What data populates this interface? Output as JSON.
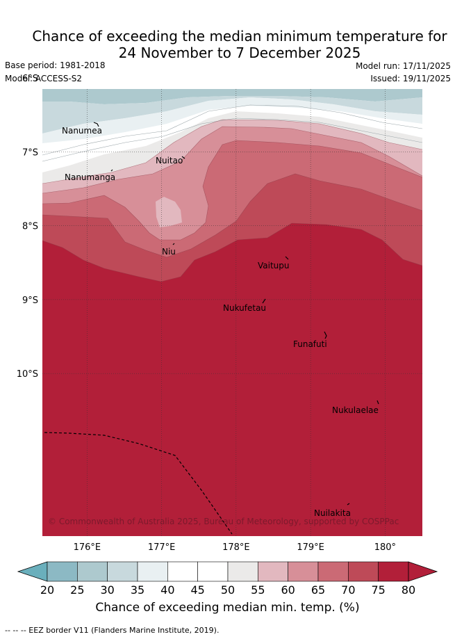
{
  "title": {
    "line1": "Chance of exceeding the median minimum temperature for",
    "line2": "24 November to 7 December 2025"
  },
  "meta": {
    "base_period": "Base period: 1981-2018",
    "model": "Model: ACCESS-S2",
    "model_run": "Model run: 17/11/2025",
    "issued": "Issued: 19/11/2025"
  },
  "map": {
    "lon_range": [
      175.4,
      180.5
    ],
    "lat_range": [
      -12.2,
      -6.15
    ],
    "x_ticks": [
      "176°E",
      "177°E",
      "178°E",
      "179°E",
      "180°"
    ],
    "y_ticks": [
      "6°S",
      "7°S",
      "8°S",
      "9°S",
      "10°S"
    ],
    "places": [
      {
        "name": "Nanumea"
      },
      {
        "name": "Nuitao"
      },
      {
        "name": "Nanumanga"
      },
      {
        "name": "Niu"
      },
      {
        "name": "Vaitupu"
      },
      {
        "name": "Nukufetau"
      },
      {
        "name": "Funafuti"
      },
      {
        "name": "Nukulaelae"
      },
      {
        "name": "Nuilakita"
      }
    ],
    "copyright": "© Commonwealth of Australia 2025, Bureau of Meteorology, supported by COSPPac"
  },
  "colorbar": {
    "ticks": [
      "20",
      "25",
      "30",
      "35",
      "40",
      "45",
      "50",
      "55",
      "60",
      "65",
      "70",
      "75",
      "80"
    ],
    "colors": [
      "#6aafbc",
      "#8cb9c4",
      "#adc9ce",
      "#c8d9dd",
      "#e9f0f2",
      "#ffffff",
      "#ffffff",
      "#ebeae9",
      "#e2b8bf",
      "#d78f98",
      "#cb6a75",
      "#be4a58",
      "#b21f39"
    ],
    "label": "Chance of exceeding median min. temp. (%)"
  },
  "footnote": "-- -- -- EEZ border V11 (Flanders Marine Institute, 2019)."
}
